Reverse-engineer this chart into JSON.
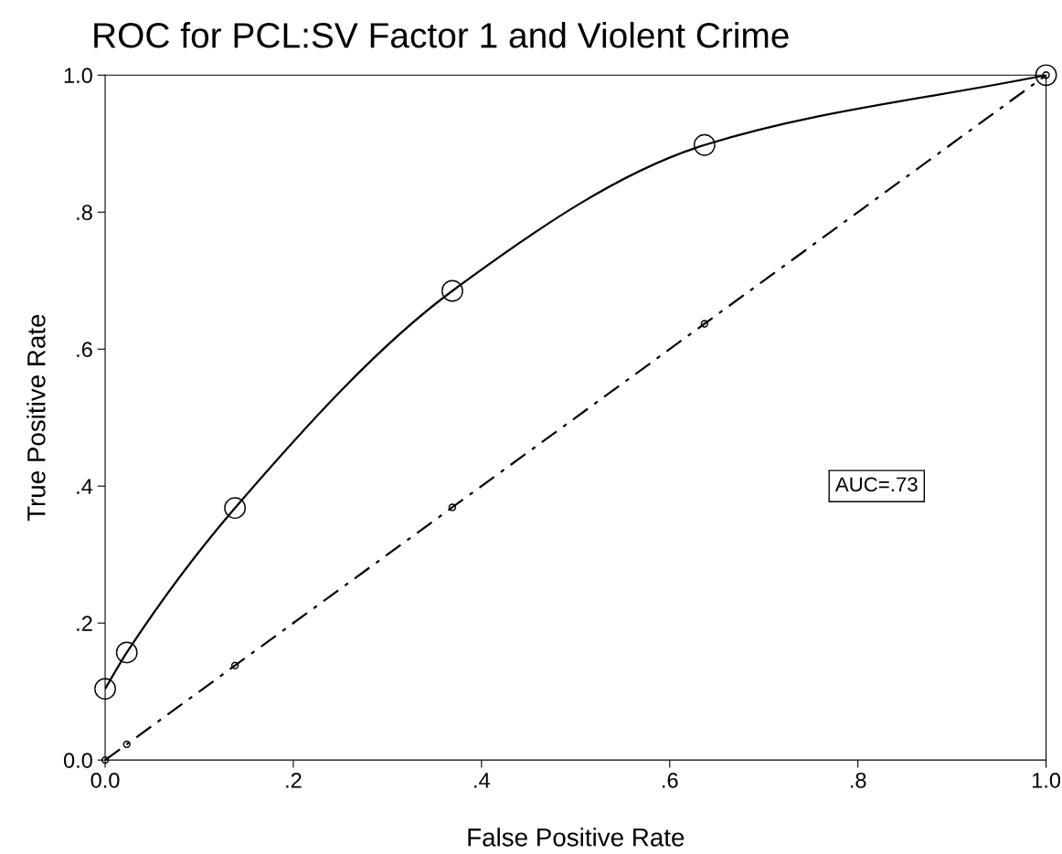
{
  "chart_data": {
    "type": "line",
    "title": "ROC for PCL:SV Factor 1 and Violent Crime",
    "xlabel": "False Positive Rate",
    "ylabel": "True Positive Rate",
    "series": [
      {
        "color": "#000000",
        "marker": "circle",
        "line_style": "solid",
        "x": [
          0,
          0.023,
          0.138,
          0.369,
          0.637,
          1.0
        ],
        "values": [
          0.104,
          0.157,
          0.368,
          0.685,
          0.898,
          1.0
        ]
      },
      {
        "color": "#000000",
        "marker": "circle",
        "line_style": "dashed",
        "x": [
          0,
          0.023,
          0.138,
          0.369,
          0.637,
          1.0
        ],
        "values": [
          0,
          0.023,
          0.138,
          0.369,
          0.637,
          1.0
        ]
      }
    ],
    "annotations": [
      "AUC=.73"
    ],
    "xlim": [
      0,
      1
    ],
    "ylim": [
      0,
      1
    ],
    "xticks": [
      {
        "value": 0,
        "label": "0.0"
      },
      {
        "value": 0.2,
        "label": ".2"
      },
      {
        "value": 0.4,
        "label": ".4"
      },
      {
        "value": 0.6,
        "label": ".6"
      },
      {
        "value": 0.8,
        "label": ".8"
      },
      {
        "value": 1,
        "label": "1.0"
      }
    ],
    "yticks": [
      {
        "value": 0,
        "label": "0.0"
      },
      {
        "value": 0.2,
        "label": ".2"
      },
      {
        "value": 0.4,
        "label": ".4"
      },
      {
        "value": 0.6,
        "label": ".6"
      },
      {
        "value": 0.8,
        "label": ".8"
      },
      {
        "value": 1,
        "label": "1.0"
      }
    ],
    "grid": false,
    "legend": false
  }
}
